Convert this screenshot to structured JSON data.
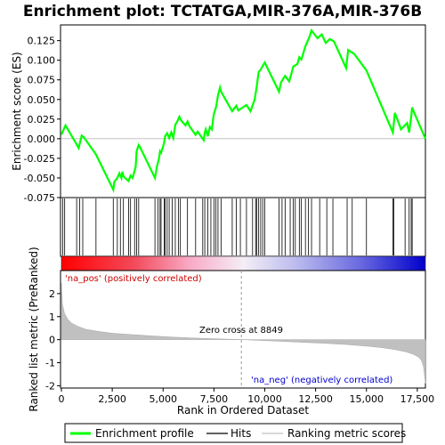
{
  "chart_data": {
    "type": "line",
    "title": "Enrichment plot: TCTATGA,MIR-376A,MIR-376B",
    "panels": {
      "enrichment": {
        "ylabel": "Enrichment score (ES)",
        "ylim": [
          -0.075,
          0.145
        ],
        "yticks": [
          -0.075,
          -0.05,
          -0.025,
          0.0,
          0.025,
          0.05,
          0.075,
          0.1,
          0.125
        ],
        "ytick_labels": [
          "-0.075",
          "-0.050",
          "-0.025",
          "0.000",
          "0.025",
          "0.050",
          "0.075",
          "0.100",
          "0.125"
        ],
        "line_color": "#00ff00",
        "series": [
          {
            "name": "Enrichment profile",
            "x": [
              0,
              80,
              200,
              700,
              850,
              1000,
              1100,
              1700,
              2550,
              2600,
              2750,
              2850,
              2950,
              3000,
              3050,
              3300,
              3400,
              3500,
              3650,
              3700,
              3800,
              3850,
              4600,
              4700,
              4800,
              4850,
              4900,
              5000,
              5050,
              5100,
              5200,
              5300,
              5400,
              5500,
              5600,
              5700,
              5800,
              5900,
              6100,
              6200,
              6300,
              6600,
              6700,
              7000,
              7050,
              7100,
              7200,
              7300,
              7400,
              7450,
              7500,
              7600,
              7700,
              7800,
              7850,
              8400,
              8600,
              8700,
              9100,
              9300,
              9500,
              9600,
              9700,
              9800,
              9900,
              10000,
              10700,
              10800,
              11000,
              11200,
              11300,
              11400,
              11600,
              11700,
              11800,
              12000,
              12200,
              12300,
              12600,
              12800,
              13000,
              13200,
              13400,
              14000,
              14100,
              14400,
              15000,
              16300,
              16400,
              16700,
              17000,
              17100,
              17200,
              17250,
              17300,
              17900
            ],
            "y": [
              0.005,
              0.01,
              0.017,
              -0.005,
              -0.012,
              0.004,
              0.002,
              -0.02,
              -0.065,
              -0.055,
              -0.05,
              -0.044,
              -0.05,
              -0.042,
              -0.048,
              -0.054,
              -0.047,
              -0.05,
              -0.036,
              -0.016,
              -0.008,
              -0.01,
              -0.05,
              -0.035,
              -0.025,
              -0.016,
              -0.018,
              -0.01,
              -0.005,
              0.003,
              0.007,
              0.001,
              0.008,
              0.001,
              0.018,
              0.022,
              0.028,
              0.023,
              0.017,
              0.022,
              0.016,
              0.005,
              0.009,
              -0.002,
              0.008,
              0.012,
              0.003,
              0.015,
              0.012,
              0.023,
              0.032,
              0.04,
              0.055,
              0.065,
              0.06,
              0.035,
              0.042,
              0.036,
              0.043,
              0.035,
              0.05,
              0.066,
              0.085,
              0.088,
              0.093,
              0.097,
              0.06,
              0.072,
              0.08,
              0.073,
              0.082,
              0.092,
              0.095,
              0.104,
              0.101,
              0.118,
              0.13,
              0.138,
              0.128,
              0.133,
              0.122,
              0.127,
              0.124,
              0.09,
              0.113,
              0.108,
              0.087,
              0.008,
              0.033,
              0.012,
              0.02,
              0.008,
              0.028,
              0.04,
              0.036,
              0.0
            ]
          }
        ]
      },
      "hits": {
        "series_name": "Hits",
        "positions": [
          60,
          160,
          750,
          900,
          1050,
          1700,
          2550,
          2750,
          2900,
          3050,
          3300,
          3400,
          3600,
          3700,
          3800,
          4600,
          4750,
          4850,
          4900,
          5050,
          5100,
          5200,
          5300,
          5450,
          5600,
          5750,
          5850,
          6200,
          6600,
          6950,
          7050,
          7200,
          7350,
          7500,
          7600,
          7700,
          7850,
          8400,
          8600,
          8800,
          9100,
          9400,
          9550,
          9600,
          9700,
          9800,
          9900,
          10000,
          10700,
          10850,
          11000,
          11250,
          11400,
          11500,
          11700,
          11800,
          12000,
          12150,
          12300,
          12700,
          13050,
          13350,
          14050,
          14300,
          15000,
          16300,
          16350,
          16900,
          17100,
          17200,
          17250
        ]
      },
      "ranking": {
        "ylabel": "Ranked list metric (PreRanked)",
        "xlabel": "Rank in Ordered Dataset",
        "xlim": [
          0,
          17900
        ],
        "xticks": [
          0,
          2500,
          5000,
          7500,
          10000,
          12500,
          15000,
          17500
        ],
        "xtick_labels": [
          "0",
          "2,500",
          "5,000",
          "7,500",
          "10,000",
          "12,500",
          "15,000",
          "17,500"
        ],
        "ylim": [
          -2.1,
          3.0
        ],
        "yticks": [
          -2,
          -1,
          0,
          1,
          2
        ],
        "ytick_labels": [
          "-2",
          "-1",
          "0",
          "1",
          "2"
        ],
        "series_name": "Ranking metric scores",
        "x": [
          0,
          50,
          150,
          300,
          500,
          800,
          1200,
          1800,
          2500,
          3500,
          4500,
          5500,
          6500,
          7500,
          8849,
          10000,
          11000,
          12000,
          13000,
          14000,
          15000,
          15800,
          16400,
          16900,
          17300,
          17550,
          17700,
          17800,
          17850,
          17900
        ],
        "y": [
          2.45,
          1.55,
          1.15,
          0.9,
          0.72,
          0.58,
          0.45,
          0.36,
          0.28,
          0.22,
          0.16,
          0.11,
          0.07,
          0.04,
          0.0,
          -0.04,
          -0.08,
          -0.12,
          -0.16,
          -0.21,
          -0.28,
          -0.35,
          -0.43,
          -0.52,
          -0.63,
          -0.75,
          -0.9,
          -1.15,
          -1.5,
          -1.9
        ],
        "zero_cross": 8849,
        "zero_cross_label": "Zero cross at 8849",
        "pos_label": "'na_pos' (positively correlated)",
        "neg_label": "'na_neg' (negatively correlated)"
      }
    },
    "legend": {
      "placement": "bottom",
      "entries": [
        {
          "label": "Enrichment profile",
          "color": "#00ff00"
        },
        {
          "label": "Hits",
          "color": "#000000"
        },
        {
          "label": "Ranking metric scores",
          "color": "#c0c0c0"
        }
      ]
    }
  }
}
